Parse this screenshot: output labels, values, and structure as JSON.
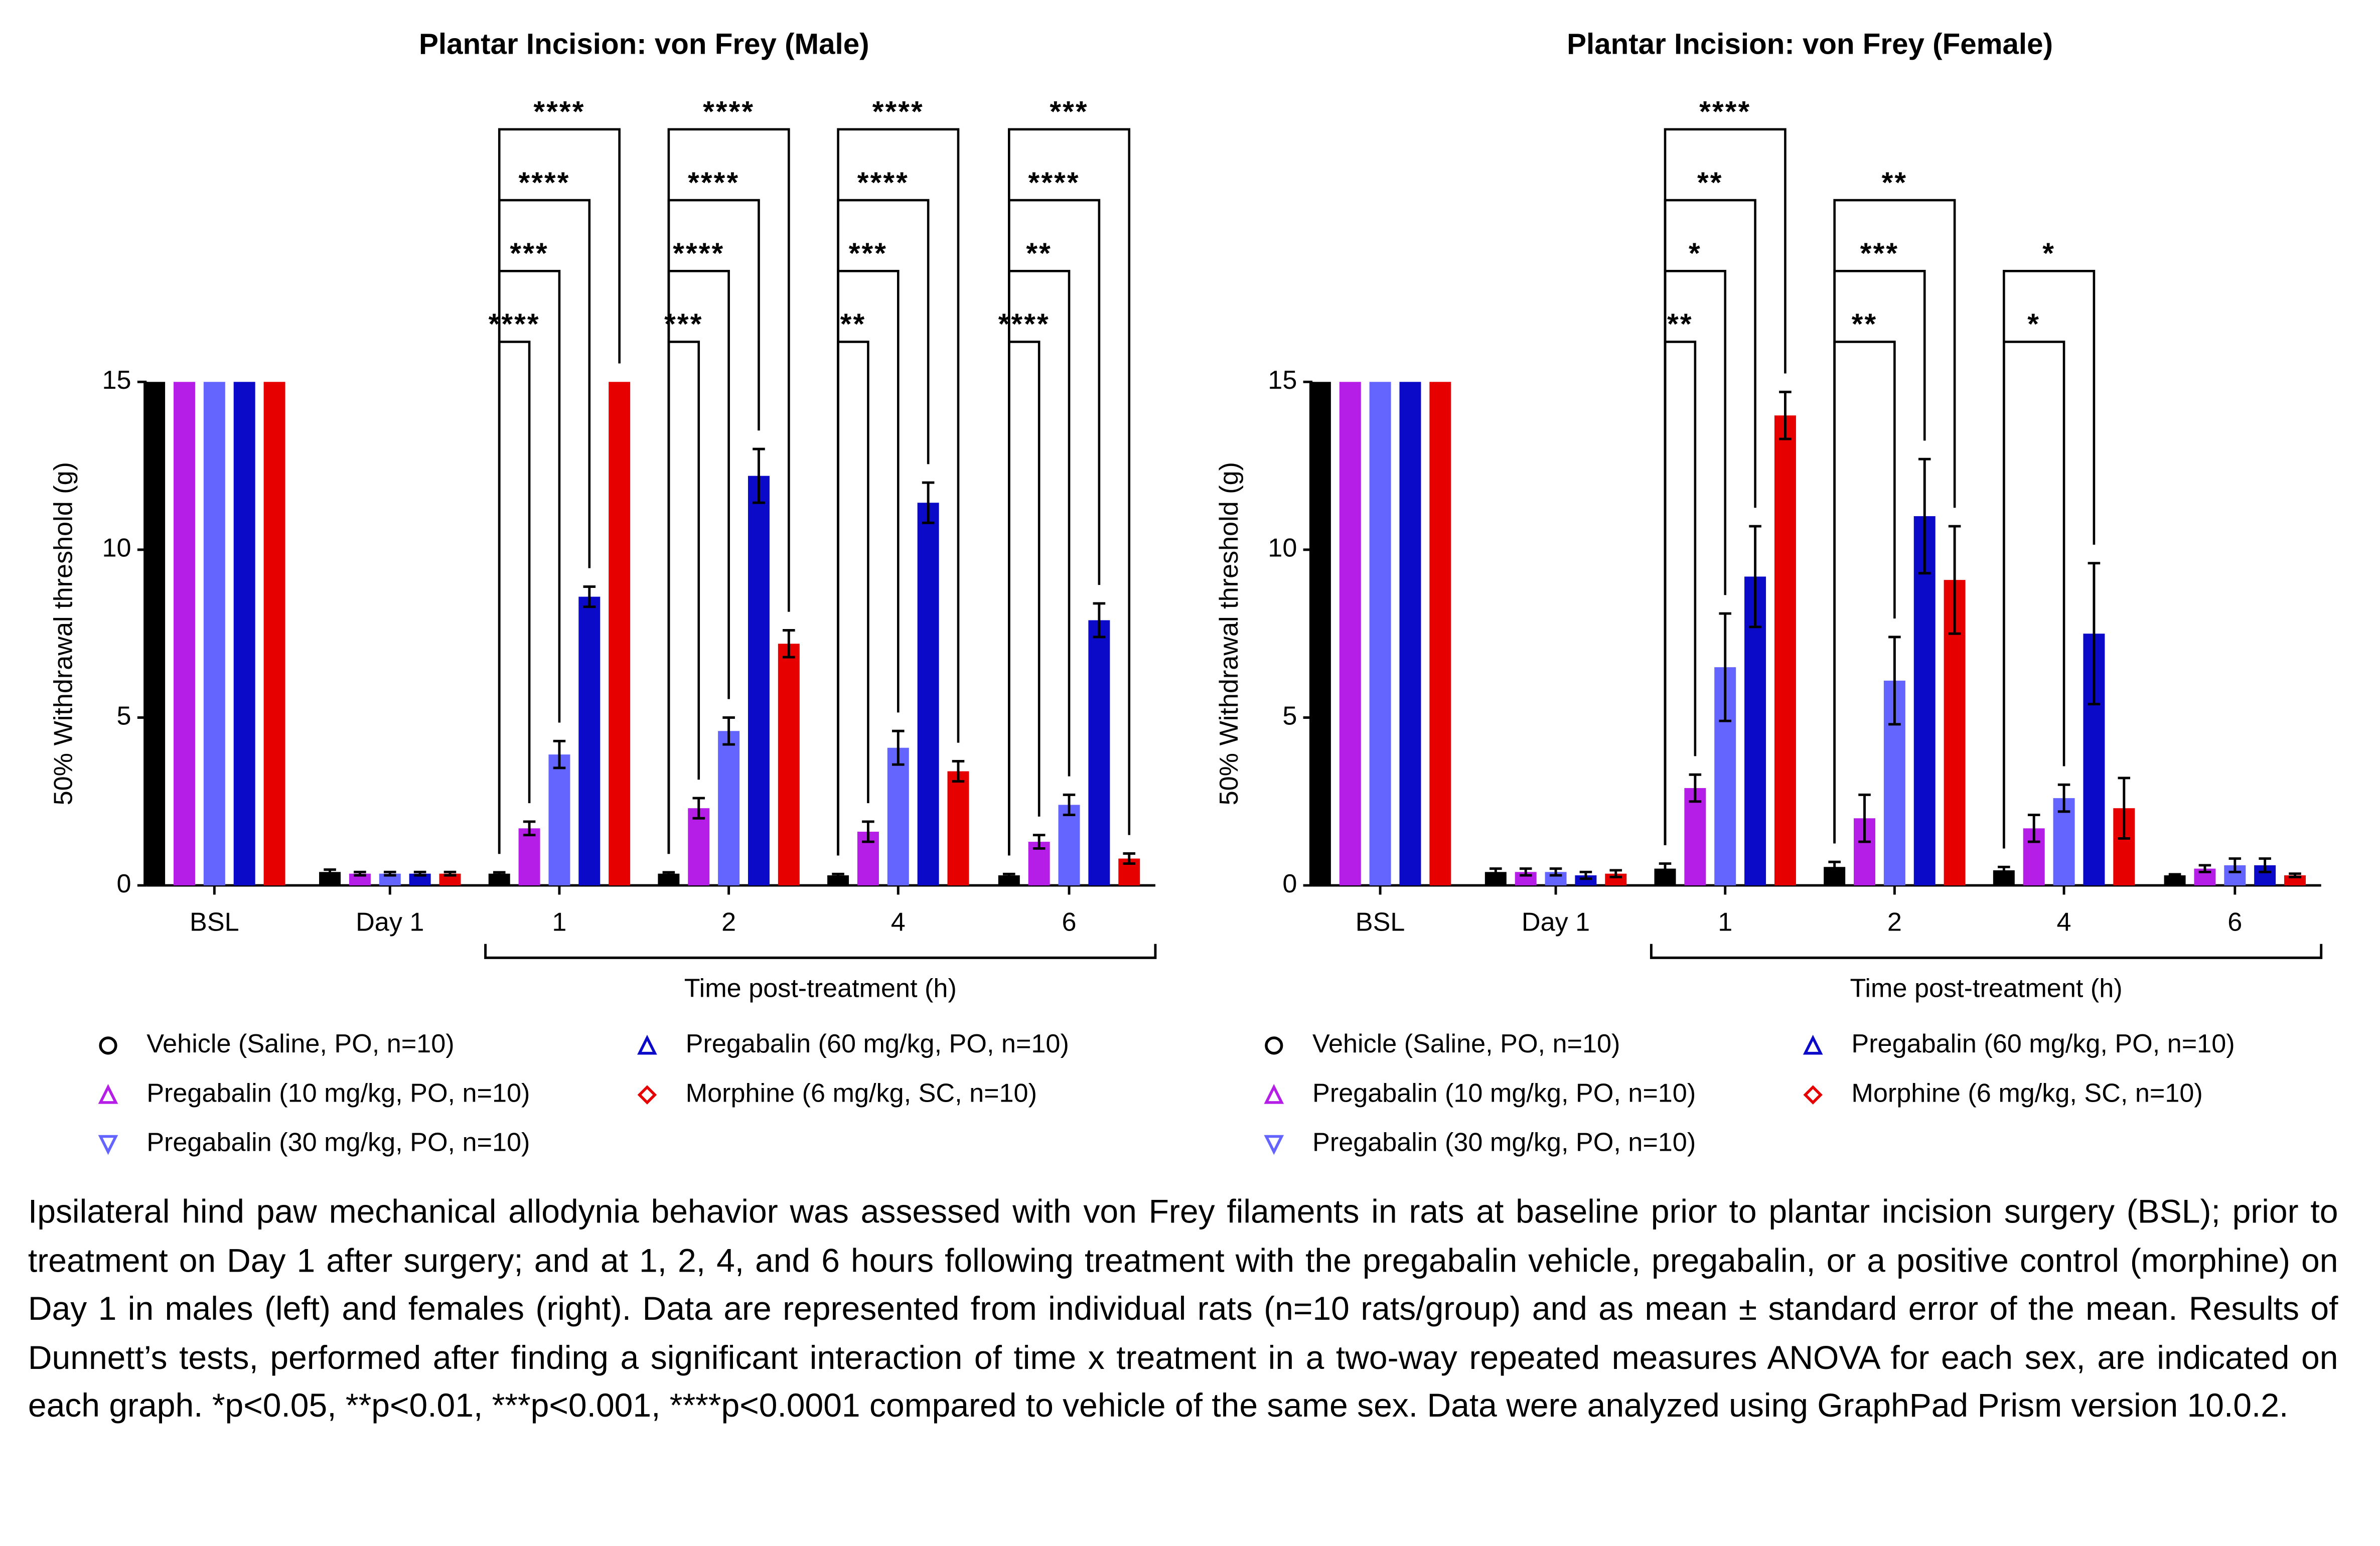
{
  "charts": [
    {
      "type": "bar",
      "title": "Plantar Incision: von Frey (Male)",
      "ylabel": "50% Withdrawal threshold (g)",
      "xlabel": "Time post-treatment (h)",
      "categories": [
        "BSL",
        "Day 1",
        "1",
        "2",
        "4",
        "6"
      ],
      "ylim": [
        0,
        15
      ],
      "yticks": [
        0,
        5,
        10,
        15
      ],
      "series": [
        {
          "name": "Vehicle (Saline, PO, n=10)",
          "color": "#000000",
          "marker": "circle",
          "values": [
            15,
            0.4,
            0.35,
            0.35,
            0.3,
            0.3
          ],
          "errors": [
            0,
            0.07,
            0.04,
            0.04,
            0.04,
            0.04
          ]
        },
        {
          "name": "Pregabalin (10 mg/kg, PO, n=10)",
          "color": "#b41ee6",
          "marker": "triangle-up",
          "values": [
            15,
            0.35,
            1.7,
            2.3,
            1.6,
            1.3
          ],
          "errors": [
            0,
            0.05,
            0.2,
            0.3,
            0.3,
            0.2
          ]
        },
        {
          "name": "Pregabalin (30 mg/kg, PO, n=10)",
          "color": "#6464ff",
          "marker": "triangle-down",
          "values": [
            15,
            0.35,
            3.9,
            4.6,
            4.1,
            2.4
          ],
          "errors": [
            0,
            0.05,
            0.4,
            0.4,
            0.5,
            0.3
          ]
        },
        {
          "name": "Pregabalin (60 mg/kg, PO, n=10)",
          "color": "#0a0ac8",
          "marker": "triangle-up",
          "values": [
            15,
            0.35,
            8.6,
            12.2,
            11.4,
            7.9
          ],
          "errors": [
            0,
            0.05,
            0.3,
            0.8,
            0.6,
            0.5
          ]
        },
        {
          "name": "Morphine (6 mg/kg, SC, n=10)",
          "color": "#e60000",
          "marker": "diamond",
          "values": [
            15,
            0.35,
            15,
            7.2,
            3.4,
            0.8
          ],
          "errors": [
            0,
            0.05,
            0,
            0.4,
            0.3,
            0.15
          ]
        }
      ],
      "significance": [
        null,
        null,
        [
          "****",
          "***",
          "****",
          "****"
        ],
        [
          "***",
          "****",
          "****",
          "****"
        ],
        [
          "**",
          "***",
          "****",
          "****"
        ],
        [
          "****",
          "**",
          "****",
          "***"
        ]
      ]
    },
    {
      "type": "bar",
      "title": "Plantar Incision: von Frey (Female)",
      "ylabel": "50% Withdrawal threshold (g)",
      "xlabel": "Time post-treatment (h)",
      "categories": [
        "BSL",
        "Day 1",
        "1",
        "2",
        "4",
        "6"
      ],
      "ylim": [
        0,
        15
      ],
      "yticks": [
        0,
        5,
        10,
        15
      ],
      "series": [
        {
          "name": "Vehicle (Saline, PO, n=10)",
          "color": "#000000",
          "marker": "circle",
          "values": [
            15,
            0.4,
            0.5,
            0.55,
            0.45,
            0.3
          ],
          "errors": [
            0,
            0.1,
            0.15,
            0.15,
            0.1,
            0.03
          ]
        },
        {
          "name": "Pregabalin (10 mg/kg, PO, n=10)",
          "color": "#b41ee6",
          "marker": "triangle-up",
          "values": [
            15,
            0.4,
            2.9,
            2.0,
            1.7,
            0.5
          ],
          "errors": [
            0,
            0.1,
            0.4,
            0.7,
            0.4,
            0.1
          ]
        },
        {
          "name": "Pregabalin (30 mg/kg, PO, n=10)",
          "color": "#6464ff",
          "marker": "triangle-down",
          "values": [
            15,
            0.4,
            6.5,
            6.1,
            2.6,
            0.6
          ],
          "errors": [
            0,
            0.1,
            1.6,
            1.3,
            0.4,
            0.2
          ]
        },
        {
          "name": "Pregabalin (60 mg/kg, PO, n=10)",
          "color": "#0a0ac8",
          "marker": "triangle-up",
          "values": [
            15,
            0.3,
            9.2,
            11.0,
            7.5,
            0.6
          ],
          "errors": [
            0,
            0.1,
            1.5,
            1.7,
            2.1,
            0.2
          ]
        },
        {
          "name": "Morphine (6 mg/kg, SC, n=10)",
          "color": "#e60000",
          "marker": "diamond",
          "values": [
            15,
            0.35,
            14.0,
            9.1,
            2.3,
            0.3
          ],
          "errors": [
            0,
            0.1,
            0.7,
            1.6,
            0.9,
            0.05
          ]
        }
      ],
      "significance": [
        null,
        null,
        [
          "**",
          "*",
          "**",
          "****"
        ],
        [
          null,
          "**",
          "***",
          "**"
        ],
        [
          null,
          "*",
          "*",
          null
        ],
        null
      ]
    }
  ],
  "caption": "Ipsilateral hind paw mechanical allodynia behavior was assessed with von Frey filaments in rats at baseline prior to plantar incision surgery (BSL); prior to treatment on Day 1 after surgery; and at 1, 2, 4, and 6 hours following treatment with the pregabalin vehicle, pregabalin, or a positive control (morphine) on Day 1 in males (left) and females (right). Data are represented from individual rats (n=10 rats/group) and as mean ± standard error of the mean. Results of Dunnett’s tests, performed after finding a significant interaction of time x treatment in a two-way repeated measures ANOVA for each sex, are indicated on each graph. *p<0.05, **p<0.01, ***p<0.001, ****p<0.0001 compared to vehicle of the same sex. Data were analyzed using GraphPad Prism version 10.0.2."
}
